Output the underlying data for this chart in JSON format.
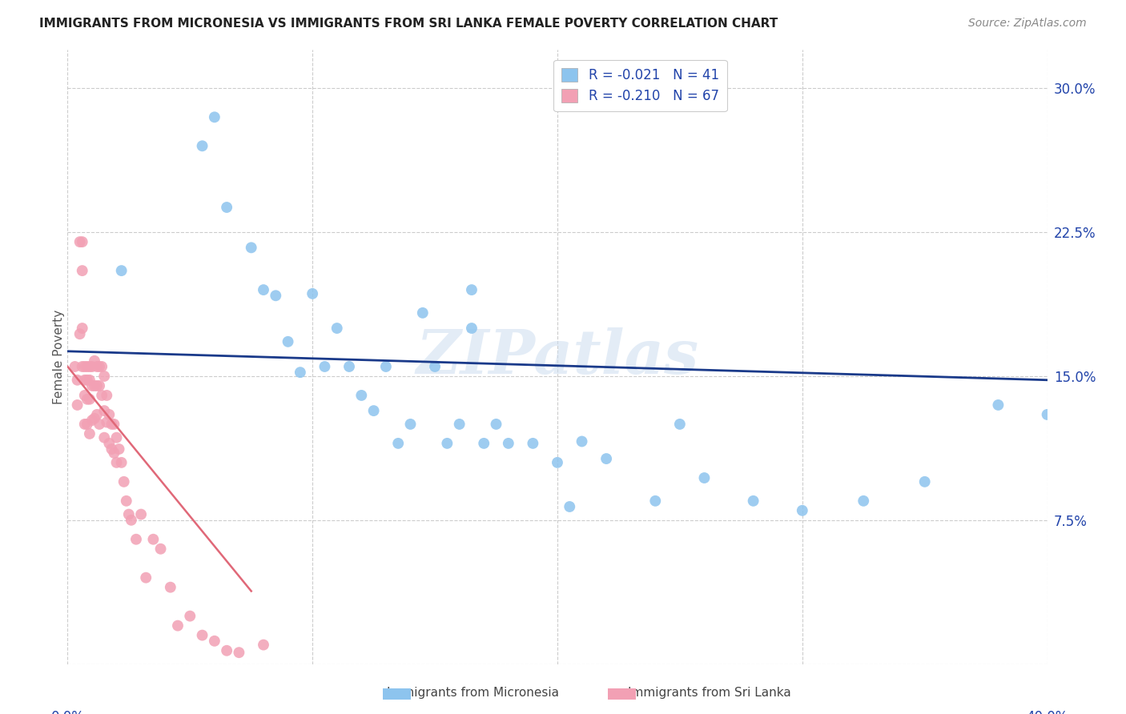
{
  "title": "IMMIGRANTS FROM MICRONESIA VS IMMIGRANTS FROM SRI LANKA FEMALE POVERTY CORRELATION CHART",
  "source": "Source: ZipAtlas.com",
  "ylabel": "Female Poverty",
  "yticks": [
    0.0,
    0.075,
    0.15,
    0.225,
    0.3
  ],
  "ytick_labels": [
    "",
    "7.5%",
    "15.0%",
    "22.5%",
    "30.0%"
  ],
  "xlim": [
    0.0,
    0.4
  ],
  "ylim": [
    0.0,
    0.32
  ],
  "legend_r1": "R = -0.021",
  "legend_n1": "N = 41",
  "legend_r2": "R = -0.210",
  "legend_n2": "N = 67",
  "color_micronesia": "#8DC4EE",
  "color_srilanka": "#F2A0B4",
  "color_line_micronesia": "#1A3A8A",
  "watermark": "ZIPatlas",
  "micronesia_x": [
    0.022,
    0.055,
    0.06,
    0.065,
    0.075,
    0.08,
    0.085,
    0.09,
    0.095,
    0.1,
    0.105,
    0.11,
    0.115,
    0.12,
    0.125,
    0.13,
    0.135,
    0.14,
    0.145,
    0.15,
    0.155,
    0.16,
    0.165,
    0.165,
    0.17,
    0.175,
    0.18,
    0.19,
    0.2,
    0.205,
    0.21,
    0.22,
    0.24,
    0.25,
    0.26,
    0.28,
    0.3,
    0.325,
    0.35,
    0.38,
    0.4
  ],
  "micronesia_y": [
    0.205,
    0.27,
    0.285,
    0.238,
    0.217,
    0.195,
    0.192,
    0.168,
    0.152,
    0.193,
    0.155,
    0.175,
    0.155,
    0.14,
    0.132,
    0.155,
    0.115,
    0.125,
    0.183,
    0.155,
    0.115,
    0.125,
    0.175,
    0.195,
    0.115,
    0.125,
    0.115,
    0.115,
    0.105,
    0.082,
    0.116,
    0.107,
    0.085,
    0.125,
    0.097,
    0.085,
    0.08,
    0.085,
    0.095,
    0.135,
    0.13
  ],
  "srilanka_x": [
    0.003,
    0.004,
    0.004,
    0.005,
    0.005,
    0.006,
    0.006,
    0.006,
    0.006,
    0.007,
    0.007,
    0.007,
    0.007,
    0.008,
    0.008,
    0.008,
    0.008,
    0.009,
    0.009,
    0.009,
    0.009,
    0.01,
    0.01,
    0.01,
    0.011,
    0.011,
    0.011,
    0.012,
    0.012,
    0.012,
    0.013,
    0.013,
    0.013,
    0.014,
    0.014,
    0.015,
    0.015,
    0.015,
    0.016,
    0.016,
    0.017,
    0.017,
    0.018,
    0.018,
    0.019,
    0.019,
    0.02,
    0.02,
    0.021,
    0.022,
    0.023,
    0.024,
    0.025,
    0.026,
    0.028,
    0.03,
    0.032,
    0.035,
    0.038,
    0.042,
    0.045,
    0.05,
    0.055,
    0.06,
    0.065,
    0.07,
    0.08
  ],
  "srilanka_y": [
    0.155,
    0.148,
    0.135,
    0.22,
    0.172,
    0.22,
    0.205,
    0.175,
    0.155,
    0.155,
    0.148,
    0.14,
    0.125,
    0.155,
    0.148,
    0.138,
    0.125,
    0.155,
    0.148,
    0.138,
    0.12,
    0.155,
    0.145,
    0.127,
    0.158,
    0.145,
    0.128,
    0.155,
    0.145,
    0.13,
    0.155,
    0.145,
    0.125,
    0.155,
    0.14,
    0.15,
    0.132,
    0.118,
    0.14,
    0.126,
    0.13,
    0.115,
    0.125,
    0.112,
    0.125,
    0.11,
    0.118,
    0.105,
    0.112,
    0.105,
    0.095,
    0.085,
    0.078,
    0.075,
    0.065,
    0.078,
    0.045,
    0.065,
    0.06,
    0.04,
    0.02,
    0.025,
    0.015,
    0.012,
    0.007,
    0.006,
    0.01
  ],
  "micronesia_trend_x": [
    0.0,
    0.4
  ],
  "micronesia_trend_y": [
    0.163,
    0.148
  ],
  "srilanka_trend_x": [
    0.0,
    0.075
  ],
  "srilanka_trend_y": [
    0.155,
    0.038
  ]
}
